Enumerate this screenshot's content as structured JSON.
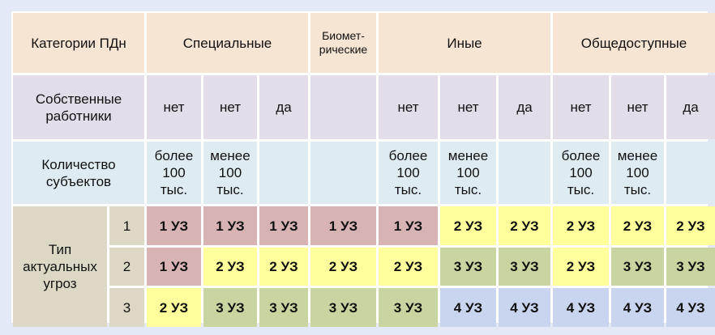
{
  "header": {
    "label": "Категории ПДн",
    "groups": [
      {
        "label": "Специальные",
        "span": 3
      },
      {
        "label": "Биомет-\nрические",
        "span": 1
      },
      {
        "label": "Иные",
        "span": 3
      },
      {
        "label": "Общедоступные",
        "span": 3
      }
    ]
  },
  "employees": {
    "label": "Собственные\nработники",
    "values": [
      "нет",
      "нет",
      "да",
      "",
      "нет",
      "нет",
      "да",
      "нет",
      "нет",
      "да"
    ]
  },
  "subjects": {
    "label": "Количество\nсубъектов",
    "values": [
      "более\n100\nтыс.",
      "менее\n100\nтыс.",
      "",
      "",
      "более\n100\nтыс.",
      "менее\n100\nтыс.",
      "",
      "более\n100\nтыс.",
      "менее\n100\nтыс.",
      ""
    ]
  },
  "threats": {
    "label": "Тип\nактуальных\nугроз",
    "rows": [
      {
        "type": "1",
        "levels": [
          "1 УЗ",
          "1 УЗ",
          "1 УЗ",
          "1 УЗ",
          "1 УЗ",
          "2 УЗ",
          "2 УЗ",
          "2 УЗ",
          "2 УЗ",
          "2 УЗ"
        ]
      },
      {
        "type": "2",
        "levels": [
          "1 УЗ",
          "2 УЗ",
          "2 УЗ",
          "2 УЗ",
          "2 УЗ",
          "3 УЗ",
          "3 УЗ",
          "2 УЗ",
          "3 УЗ",
          "3 УЗ"
        ]
      },
      {
        "type": "3",
        "levels": [
          "2 УЗ",
          "3 УЗ",
          "3 УЗ",
          "3 УЗ",
          "3 УЗ",
          "4 УЗ",
          "4 УЗ",
          "4 УЗ",
          "4 УЗ",
          "4 УЗ"
        ]
      }
    ]
  },
  "level_colors": {
    "1 УЗ": "#d8b3b4",
    "2 УЗ": "#ffff9c",
    "3 УЗ": "#c8d5a0",
    "4 УЗ": "#c9d5ee"
  }
}
